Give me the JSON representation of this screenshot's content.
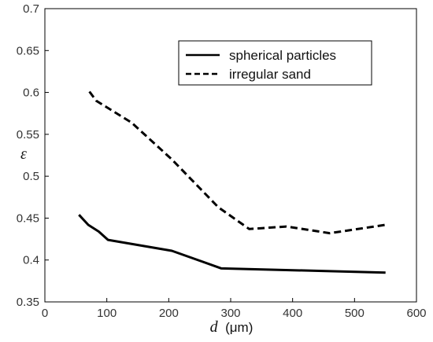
{
  "chart_data": {
    "type": "line",
    "xlabel": "d",
    "xlabel_unit": "(μm)",
    "ylabel": "ε",
    "xlim": [
      0,
      600
    ],
    "ylim": [
      0.35,
      0.7
    ],
    "xticks": [
      "0",
      "100",
      "200",
      "300",
      "400",
      "500",
      "600"
    ],
    "yticks": [
      "0.35",
      "0.4",
      "0.45",
      "0.5",
      "0.55",
      "0.6",
      "0.65",
      "0.7"
    ],
    "grid": false,
    "legend_position": "top-right",
    "series": [
      {
        "name": "spherical particles",
        "style": "solid",
        "color": "#000000",
        "x": [
          55,
          70,
          87,
          102,
          205,
          285,
          550
        ],
        "y": [
          0.454,
          0.442,
          0.434,
          0.424,
          0.411,
          0.39,
          0.385
        ]
      },
      {
        "name": "irregular sand",
        "style": "dashed",
        "color": "#000000",
        "x": [
          72,
          83,
          140,
          205,
          280,
          330,
          390,
          460,
          550
        ],
        "y": [
          0.601,
          0.59,
          0.564,
          0.52,
          0.463,
          0.437,
          0.44,
          0.432,
          0.442
        ]
      }
    ]
  }
}
